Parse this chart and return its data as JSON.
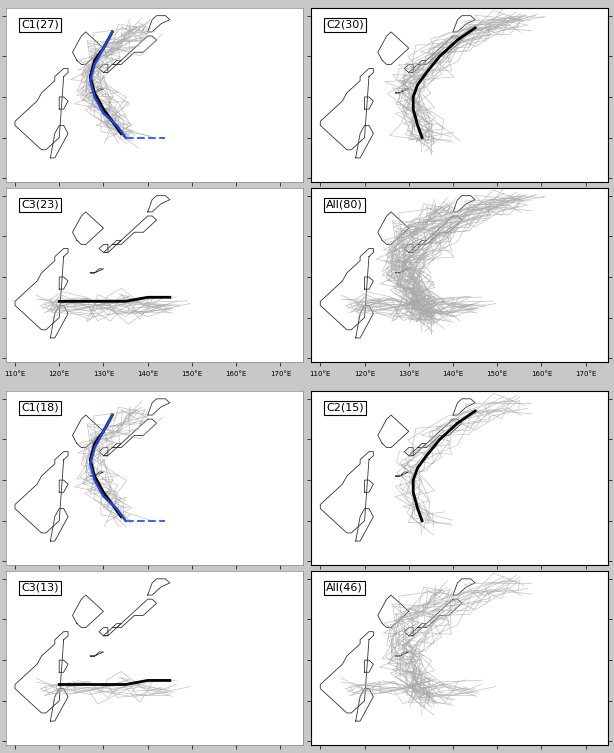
{
  "panel_groups": [
    {
      "labels": [
        "C1(27)",
        "C2(30)",
        "C3(23)",
        "All(80)"
      ],
      "outer_bg": "#d0d0d0"
    },
    {
      "labels": [
        "C1(18)",
        "C2(15)",
        "C3(13)",
        "All(46)"
      ],
      "outer_bg": "#d0d0d0"
    }
  ],
  "map_extent": [
    108,
    175,
    4,
    47
  ],
  "lat_ticks": [
    5,
    15,
    25,
    35,
    45
  ],
  "lon_ticks": [
    110,
    120,
    130,
    140,
    150,
    160,
    170
  ],
  "fig_bg": "#c8c8c8",
  "panel_bg": "#ffffff",
  "coastline_color": "#333333",
  "track_color": "#aaaaaa",
  "representative_color": "#111111",
  "blue_color": "#2244cc",
  "blue_dashed_color": "#4466ee"
}
